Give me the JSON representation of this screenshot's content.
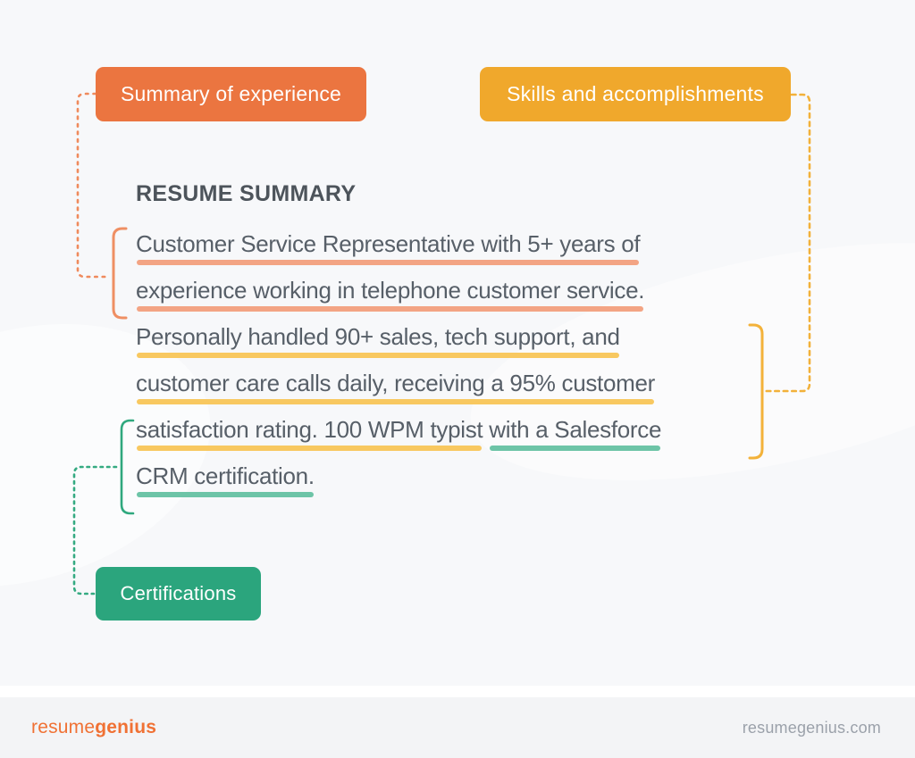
{
  "colors": {
    "background": "#f7f8fa",
    "footer_background": "#f3f4f6",
    "orange": "#eb7540",
    "yellow": "#f0a82c",
    "green": "#2ba57d",
    "salmon_underline": "#f3a484",
    "yellow_underline": "#f8c860",
    "green_underline": "#6dc4a7",
    "orange_connector": "#ef8a5c",
    "yellow_connector": "#f2b13a",
    "green_connector": "#34aa81",
    "body_text": "#575f68",
    "heading_text": "#4d545b",
    "logo_orange": "#f07134",
    "footer_text": "#9ba1aa"
  },
  "callouts": {
    "summary_of_experience": "Summary of experience",
    "skills_and_accomplishments": "Skills and accomplishments",
    "certifications": "Certifications"
  },
  "resume": {
    "heading": "RESUME SUMMARY",
    "lines": [
      {
        "segments": [
          {
            "text": "Customer Service Representative with 5+ years of",
            "underline": "salmon"
          }
        ]
      },
      {
        "segments": [
          {
            "text": "experience working in telephone customer service.",
            "underline": "salmon"
          }
        ]
      },
      {
        "segments": [
          {
            "text": "Personally handled 90+ sales, tech support, and",
            "underline": "yellow"
          }
        ]
      },
      {
        "segments": [
          {
            "text": "customer care calls daily, receiving a 95% customer",
            "underline": "yellow"
          }
        ]
      },
      {
        "segments": [
          {
            "text": "satisfaction rating. 100 WPM typist",
            "underline": "yellow"
          },
          {
            "text": " ",
            "underline": null
          },
          {
            "text": "with a Salesforce",
            "underline": "green"
          }
        ]
      },
      {
        "segments": [
          {
            "text": "CRM certification.",
            "underline": "green"
          }
        ]
      }
    ]
  },
  "footer": {
    "logo_regular": "resume",
    "logo_bold": "genius",
    "website": "resumegenius.com"
  }
}
